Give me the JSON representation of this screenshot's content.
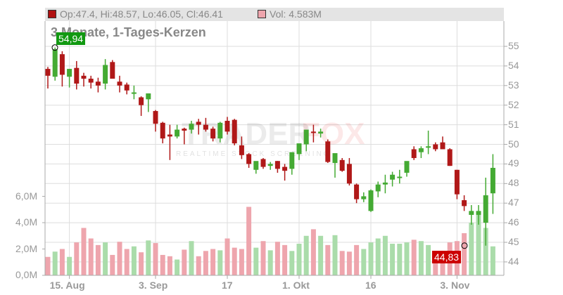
{
  "legend": {
    "ohlc_text": "Op:47.4, Hi:48.57, Lo:46.05, Cl:46.41",
    "ohlc_color": "#b01010",
    "vol_text": "Vol: 4.583M",
    "vol_color": "#eea5ad"
  },
  "subtitle": "3 Monate, 1-Tages-Kerzen",
  "high_label": "54,94",
  "low_label": "44,83",
  "watermark": {
    "brand_left": "TRADER",
    "brand_right": "FOX",
    "tagline": "REALTIME STOCK SCREENING"
  },
  "colors": {
    "up": "#44aa33",
    "down": "#b01818",
    "vol_up": "#aadcaa",
    "vol_down": "#eea5ad",
    "grid": "#dddddd",
    "axis": "#aaaaaa"
  },
  "chart_data": {
    "type": "candlestick",
    "title": "3 Monate, 1-Tages-Kerzen",
    "price_axis": {
      "ticks": [
        44,
        45,
        46,
        47,
        48,
        49,
        50,
        51,
        52,
        53,
        54,
        55
      ],
      "position": "right"
    },
    "volume_axis": {
      "ticks": [
        "0,0M",
        "2,0M",
        "4,0M",
        "6,0M"
      ],
      "values": [
        0,
        2,
        4,
        6
      ],
      "position": "left"
    },
    "x_tick_labels": [
      {
        "label": "15. Aug",
        "index": 3
      },
      {
        "label": "3. Sep",
        "index": 15
      },
      {
        "label": "17",
        "index": 25
      },
      {
        "label": "1. Okt",
        "index": 35
      },
      {
        "label": "16",
        "index": 45
      },
      {
        "label": "3. Nov",
        "index": 57
      }
    ],
    "candles": [
      {
        "o": 53.85,
        "h": 53.95,
        "l": 52.85,
        "c": 53.5,
        "v": 1.4
      },
      {
        "o": 53.45,
        "h": 54.94,
        "l": 53.25,
        "c": 54.85,
        "v": 1.8
      },
      {
        "o": 54.6,
        "h": 54.75,
        "l": 52.95,
        "c": 53.55,
        "v": 2.0
      },
      {
        "o": 53.45,
        "h": 53.85,
        "l": 52.9,
        "c": 53.85,
        "v": 1.4
      },
      {
        "o": 53.9,
        "h": 54.25,
        "l": 52.8,
        "c": 53.1,
        "v": 2.5
      },
      {
        "o": 53.5,
        "h": 53.65,
        "l": 52.95,
        "c": 53.35,
        "v": 3.6
      },
      {
        "o": 53.35,
        "h": 53.5,
        "l": 52.85,
        "c": 53.15,
        "v": 2.8
      },
      {
        "o": 53.2,
        "h": 53.4,
        "l": 52.65,
        "c": 53.0,
        "v": 2.3
      },
      {
        "o": 53.1,
        "h": 54.35,
        "l": 52.8,
        "c": 54.05,
        "v": 2.5
      },
      {
        "o": 54.2,
        "h": 54.3,
        "l": 53.45,
        "c": 53.35,
        "v": 1.55
      },
      {
        "o": 53.2,
        "h": 53.5,
        "l": 52.65,
        "c": 53.0,
        "v": 2.55
      },
      {
        "o": 53.05,
        "h": 53.15,
        "l": 52.55,
        "c": 52.75,
        "v": 2.0
      },
      {
        "o": 52.6,
        "h": 53.0,
        "l": 52.3,
        "c": 52.65,
        "v": 2.2
      },
      {
        "o": 52.4,
        "h": 52.45,
        "l": 51.45,
        "c": 52.0,
        "v": 1.75
      },
      {
        "o": 52.3,
        "h": 52.6,
        "l": 51.65,
        "c": 52.6,
        "v": 2.65
      },
      {
        "o": 51.7,
        "h": 51.75,
        "l": 50.65,
        "c": 51.05,
        "v": 2.45
      },
      {
        "o": 51.1,
        "h": 51.15,
        "l": 50.05,
        "c": 50.3,
        "v": 1.55
      },
      {
        "o": 50.5,
        "h": 51.0,
        "l": 49.2,
        "c": 50.4,
        "v": 1.45
      },
      {
        "o": 50.4,
        "h": 51.0,
        "l": 50.3,
        "c": 50.75,
        "v": 1.2
      },
      {
        "o": 50.8,
        "h": 50.85,
        "l": 50.0,
        "c": 50.7,
        "v": 1.95
      },
      {
        "o": 50.75,
        "h": 51.2,
        "l": 50.55,
        "c": 51.05,
        "v": 2.6
      },
      {
        "o": 51.15,
        "h": 51.3,
        "l": 50.5,
        "c": 51.0,
        "v": 1.45
      },
      {
        "o": 51.0,
        "h": 51.35,
        "l": 50.65,
        "c": 50.75,
        "v": 1.85
      },
      {
        "o": 50.8,
        "h": 50.9,
        "l": 50.15,
        "c": 50.3,
        "v": 2.0
      },
      {
        "o": 50.3,
        "h": 51.15,
        "l": 50.1,
        "c": 51.1,
        "v": 1.9
      },
      {
        "o": 51.2,
        "h": 51.4,
        "l": 50.5,
        "c": 50.65,
        "v": 2.8
      },
      {
        "o": 51.25,
        "h": 51.3,
        "l": 49.95,
        "c": 50.05,
        "v": 2.1
      },
      {
        "o": 49.95,
        "h": 50.4,
        "l": 49.25,
        "c": 49.45,
        "v": 2.0
      },
      {
        "o": 49.5,
        "h": 49.55,
        "l": 48.8,
        "c": 49.0,
        "v": 5.2
      },
      {
        "o": 48.7,
        "h": 48.85,
        "l": 48.5,
        "c": 49.15,
        "v": 2.1
      },
      {
        "o": 49.25,
        "h": 49.3,
        "l": 48.75,
        "c": 48.85,
        "v": 2.6
      },
      {
        "o": 48.9,
        "h": 49.1,
        "l": 48.7,
        "c": 49.0,
        "v": 1.9
      },
      {
        "o": 49.15,
        "h": 49.15,
        "l": 48.55,
        "c": 48.75,
        "v": 2.55
      },
      {
        "o": 48.85,
        "h": 49.0,
        "l": 48.15,
        "c": 48.65,
        "v": 2.3
      },
      {
        "o": 48.75,
        "h": 49.5,
        "l": 48.45,
        "c": 49.6,
        "v": 1.85
      },
      {
        "o": 49.5,
        "h": 49.9,
        "l": 49.2,
        "c": 50.05,
        "v": 2.4
      },
      {
        "o": 50.0,
        "h": 50.35,
        "l": 49.65,
        "c": 50.75,
        "v": 3.0
      },
      {
        "o": 50.65,
        "h": 51.0,
        "l": 50.1,
        "c": 50.6,
        "v": 3.5
      },
      {
        "o": 50.55,
        "h": 50.8,
        "l": 50.35,
        "c": 50.65,
        "v": 3.0
      },
      {
        "o": 50.15,
        "h": 50.25,
        "l": 49.05,
        "c": 49.1,
        "v": 2.3
      },
      {
        "o": 49.05,
        "h": 49.1,
        "l": 48.3,
        "c": 49.55,
        "v": 3.05
      },
      {
        "o": 49.2,
        "h": 49.3,
        "l": 48.6,
        "c": 48.65,
        "v": 1.85
      },
      {
        "o": 49.0,
        "h": 49.3,
        "l": 47.9,
        "c": 48.0,
        "v": 1.8
      },
      {
        "o": 47.95,
        "h": 48.0,
        "l": 47.0,
        "c": 47.2,
        "v": 2.3
      },
      {
        "o": 47.2,
        "h": 47.55,
        "l": 47.05,
        "c": 47.35,
        "v": 2.0
      },
      {
        "o": 46.6,
        "h": 47.7,
        "l": 46.55,
        "c": 47.65,
        "v": 2.5
      },
      {
        "o": 47.6,
        "h": 48.1,
        "l": 47.3,
        "c": 47.95,
        "v": 2.8
      },
      {
        "o": 47.95,
        "h": 48.45,
        "l": 47.5,
        "c": 48.05,
        "v": 3.0
      },
      {
        "o": 48.2,
        "h": 48.6,
        "l": 47.85,
        "c": 48.45,
        "v": 2.4
      },
      {
        "o": 48.35,
        "h": 48.7,
        "l": 48.0,
        "c": 48.35,
        "v": 2.4
      },
      {
        "o": 48.55,
        "h": 49.1,
        "l": 48.35,
        "c": 49.15,
        "v": 2.5
      },
      {
        "o": 49.75,
        "h": 49.9,
        "l": 49.2,
        "c": 49.3,
        "v": 2.7
      },
      {
        "o": 49.6,
        "h": 49.9,
        "l": 49.3,
        "c": 49.8,
        "v": 2.6
      },
      {
        "o": 49.85,
        "h": 50.7,
        "l": 49.5,
        "c": 49.9,
        "v": 2.3
      },
      {
        "o": 50.0,
        "h": 50.1,
        "l": 49.65,
        "c": 49.75,
        "v": 1.55
      },
      {
        "o": 50.1,
        "h": 50.4,
        "l": 49.85,
        "c": 49.75,
        "v": 1.3
      },
      {
        "o": 49.75,
        "h": 49.8,
        "l": 48.9,
        "c": 48.9,
        "v": 2.5
      },
      {
        "o": 48.7,
        "h": 48.7,
        "l": 47.2,
        "c": 47.45,
        "v": 2.6
      },
      {
        "o": 47.15,
        "h": 47.4,
        "l": 46.6,
        "c": 46.85,
        "v": 3.2
      },
      {
        "o": 46.4,
        "h": 46.9,
        "l": 45.9,
        "c": 46.6,
        "v": 4.0
      },
      {
        "o": 46.4,
        "h": 46.9,
        "l": 45.9,
        "c": 46.6,
        "v": 4.6
      },
      {
        "o": 46.0,
        "h": 48.3,
        "l": 44.83,
        "c": 47.4,
        "v": 3.6
      },
      {
        "o": 47.5,
        "h": 49.5,
        "l": 46.45,
        "c": 48.8,
        "v": 2.2
      }
    ]
  }
}
